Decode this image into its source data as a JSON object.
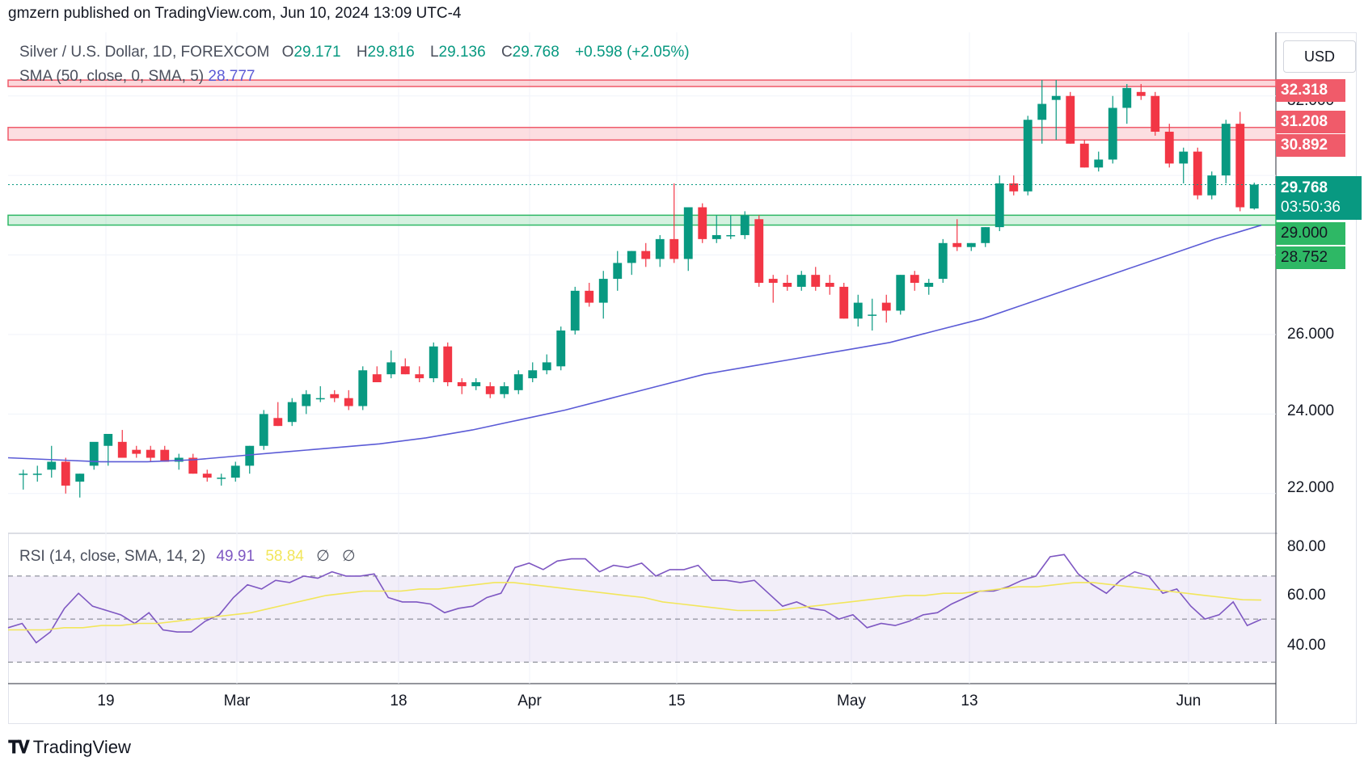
{
  "header": {
    "published_line": "gmzern published on TradingView.com, Jun 10, 2024 13:09 UTC-4"
  },
  "legend": {
    "symbol": "Silver / U.S. Dollar, 1D, FOREXCOM",
    "o_label": "O",
    "o_value": "29.171",
    "h_label": "H",
    "h_value": "29.816",
    "l_label": "L",
    "l_value": "29.136",
    "c_label": "C",
    "c_value": "29.768",
    "change": "+0.598 (+2.05%)",
    "sma_label": "SMA (50, close, 0, SMA, 5)",
    "sma_value": "28.777"
  },
  "rsi_legend": {
    "label": "RSI (14, close, SMA, 14, 2)",
    "rsi_value": "49.91",
    "rsi_ma_value": "58.84",
    "na1": "∅",
    "na2": "∅"
  },
  "currency": "USD",
  "price_tags": {
    "r1": "32.318",
    "r2": "31.208",
    "r3": "30.892",
    "current_price": "29.768",
    "countdown": "03:50:36",
    "s1": "29.000",
    "s2": "28.752"
  },
  "y_axis": [
    "32.000",
    "26.000",
    "24.000",
    "22.000"
  ],
  "rsi_axis": [
    "80.00",
    "60.00",
    "40.00"
  ],
  "x_axis": [
    "19",
    "Mar",
    "18",
    "Apr",
    "15",
    "May",
    "13",
    "Jun"
  ],
  "logo_text": "TradingView",
  "colors": {
    "up": "#089981",
    "down": "#f23645",
    "sma": "#5b5bd6",
    "rsi": "#7e57c2",
    "rsi_ma": "#f2e65b",
    "resistance": "#f05b6a",
    "support": "#2eb865"
  },
  "chart_data": {
    "type": "candlestick",
    "title": "Silver / U.S. Dollar, 1D, FOREXCOM",
    "ylim": [
      21.0,
      33.6
    ],
    "price_levels": {
      "resistance_upper": 32.318,
      "resistance_zone": [
        30.892,
        31.208
      ],
      "support_zone": [
        28.752,
        29.0
      ],
      "current": 29.768
    },
    "candles": [
      [
        22.5,
        22.6,
        22.1,
        22.5
      ],
      [
        22.5,
        22.7,
        22.3,
        22.5
      ],
      [
        22.6,
        23.2,
        22.4,
        22.8
      ],
      [
        22.8,
        22.9,
        22.0,
        22.2
      ],
      [
        22.3,
        22.5,
        21.9,
        22.5
      ],
      [
        22.7,
        23.2,
        22.6,
        23.3
      ],
      [
        23.2,
        23.5,
        22.7,
        23.5
      ],
      [
        23.3,
        23.6,
        22.9,
        22.9
      ],
      [
        23.1,
        23.2,
        22.9,
        23.0
      ],
      [
        23.1,
        23.2,
        22.8,
        22.9
      ],
      [
        23.1,
        23.2,
        22.8,
        22.8
      ],
      [
        22.8,
        23.0,
        22.6,
        22.9
      ],
      [
        22.9,
        23.0,
        22.5,
        22.5
      ],
      [
        22.5,
        22.6,
        22.3,
        22.4
      ],
      [
        22.4,
        22.5,
        22.2,
        22.4
      ],
      [
        22.4,
        22.8,
        22.3,
        22.7
      ],
      [
        22.7,
        23.2,
        22.5,
        23.2
      ],
      [
        23.2,
        24.1,
        23.1,
        24.0
      ],
      [
        23.9,
        24.3,
        23.7,
        23.7
      ],
      [
        23.8,
        24.4,
        23.7,
        24.3
      ],
      [
        24.2,
        24.6,
        24.0,
        24.5
      ],
      [
        24.4,
        24.7,
        24.3,
        24.4
      ],
      [
        24.5,
        24.6,
        24.3,
        24.4
      ],
      [
        24.4,
        24.6,
        24.1,
        24.2
      ],
      [
        24.2,
        25.2,
        24.1,
        25.1
      ],
      [
        25.0,
        25.2,
        24.8,
        24.8
      ],
      [
        25.0,
        25.6,
        24.9,
        25.3
      ],
      [
        25.2,
        25.4,
        25.0,
        25.0
      ],
      [
        25.0,
        25.2,
        24.8,
        24.9
      ],
      [
        24.9,
        25.8,
        24.8,
        25.7
      ],
      [
        25.7,
        25.8,
        24.7,
        24.8
      ],
      [
        24.8,
        24.9,
        24.5,
        24.7
      ],
      [
        24.7,
        24.9,
        24.6,
        24.8
      ],
      [
        24.7,
        24.8,
        24.4,
        24.5
      ],
      [
        24.5,
        24.8,
        24.4,
        24.7
      ],
      [
        24.6,
        25.1,
        24.5,
        25.0
      ],
      [
        24.9,
        25.3,
        24.8,
        25.1
      ],
      [
        25.1,
        25.5,
        25.0,
        25.3
      ],
      [
        25.2,
        26.2,
        25.1,
        26.1
      ],
      [
        26.1,
        27.2,
        26.0,
        27.1
      ],
      [
        27.1,
        27.3,
        26.7,
        26.8
      ],
      [
        26.8,
        27.6,
        26.4,
        27.4
      ],
      [
        27.4,
        28.1,
        27.1,
        27.8
      ],
      [
        27.8,
        28.1,
        27.5,
        28.1
      ],
      [
        28.1,
        28.3,
        27.7,
        27.9
      ],
      [
        27.9,
        28.5,
        27.7,
        28.4
      ],
      [
        28.4,
        29.8,
        27.8,
        27.9
      ],
      [
        27.9,
        29.2,
        27.6,
        29.2
      ],
      [
        29.2,
        29.3,
        28.3,
        28.4
      ],
      [
        28.4,
        29.0,
        28.3,
        28.5
      ],
      [
        28.5,
        29.0,
        28.4,
        28.5
      ],
      [
        28.5,
        29.1,
        28.4,
        29.0
      ],
      [
        28.9,
        29.0,
        27.2,
        27.3
      ],
      [
        27.4,
        27.5,
        26.8,
        27.3
      ],
      [
        27.3,
        27.5,
        27.1,
        27.2
      ],
      [
        27.2,
        27.6,
        27.1,
        27.5
      ],
      [
        27.5,
        27.7,
        27.1,
        27.2
      ],
      [
        27.3,
        27.5,
        27.0,
        27.2
      ],
      [
        27.2,
        27.3,
        26.4,
        26.4
      ],
      [
        26.4,
        27.0,
        26.2,
        26.8
      ],
      [
        26.5,
        26.9,
        26.1,
        26.5
      ],
      [
        26.8,
        27.0,
        26.3,
        26.6
      ],
      [
        26.6,
        27.5,
        26.5,
        27.5
      ],
      [
        27.5,
        27.6,
        27.1,
        27.3
      ],
      [
        27.2,
        27.4,
        27.0,
        27.3
      ],
      [
        27.4,
        28.4,
        27.3,
        28.3
      ],
      [
        28.3,
        28.9,
        28.1,
        28.2
      ],
      [
        28.2,
        28.3,
        28.1,
        28.3
      ],
      [
        28.3,
        28.7,
        28.2,
        28.7
      ],
      [
        28.7,
        30.0,
        28.6,
        29.8
      ],
      [
        29.8,
        30.0,
        29.5,
        29.6
      ],
      [
        29.6,
        31.5,
        29.5,
        31.4
      ],
      [
        31.4,
        32.4,
        30.8,
        31.8
      ],
      [
        31.9,
        32.4,
        30.9,
        32.0
      ],
      [
        32.0,
        32.1,
        30.8,
        30.8
      ],
      [
        30.8,
        30.9,
        30.2,
        30.2
      ],
      [
        30.2,
        30.6,
        30.1,
        30.4
      ],
      [
        30.4,
        32.0,
        30.3,
        31.7
      ],
      [
        31.7,
        32.3,
        31.3,
        32.2
      ],
      [
        32.1,
        32.3,
        31.9,
        32.0
      ],
      [
        32.0,
        32.1,
        31.0,
        31.1
      ],
      [
        31.1,
        31.3,
        30.2,
        30.3
      ],
      [
        30.3,
        30.7,
        29.8,
        30.6
      ],
      [
        30.6,
        30.7,
        29.4,
        29.5
      ],
      [
        29.5,
        30.1,
        29.4,
        30.0
      ],
      [
        30.0,
        31.4,
        29.8,
        31.3
      ],
      [
        31.3,
        31.6,
        29.1,
        29.2
      ],
      [
        29.17,
        29.82,
        29.14,
        29.77
      ]
    ],
    "sma_50": [
      22.9,
      22.85,
      22.8,
      22.8,
      22.85,
      22.95,
      23.05,
      23.15,
      23.25,
      23.4,
      23.6,
      23.85,
      24.1,
      24.4,
      24.7,
      25.0,
      25.2,
      25.4,
      25.6,
      25.8,
      26.1,
      26.4,
      26.8,
      27.2,
      27.6,
      28.0,
      28.4,
      28.75
    ],
    "rsi": [
      46,
      48,
      39,
      44,
      55,
      62,
      56,
      54,
      52,
      48,
      53,
      45,
      44,
      44,
      49,
      52,
      60,
      66,
      64,
      68,
      67,
      70,
      69,
      72,
      70,
      70,
      71,
      60,
      58,
      58,
      57,
      53,
      55,
      56,
      60,
      62,
      74,
      76,
      73,
      77,
      78,
      78,
      72,
      75,
      74,
      76,
      70,
      73,
      73,
      75,
      68,
      68,
      67,
      68,
      62,
      56,
      58,
      55,
      54,
      50,
      52,
      46,
      48,
      47,
      49,
      52,
      53,
      57,
      60,
      63,
      63,
      65,
      68,
      70,
      79,
      80,
      71,
      66,
      62,
      68,
      72,
      70,
      62,
      64,
      56,
      50,
      52,
      58,
      47,
      49.91
    ],
    "rsi_ma": [
      45,
      45,
      45,
      46,
      46,
      47,
      47,
      48,
      48,
      49,
      50,
      51,
      52,
      53,
      55,
      57,
      59,
      61,
      62,
      63,
      63,
      63,
      64,
      64,
      65,
      66,
      67,
      67,
      66,
      65,
      64,
      63,
      62,
      61,
      60,
      58,
      57,
      56,
      55,
      54,
      54,
      54,
      55,
      56,
      57,
      58,
      59,
      60,
      61,
      61,
      62,
      62,
      63,
      64,
      65,
      65,
      66,
      67,
      67,
      66,
      65,
      64,
      63,
      62,
      61,
      60,
      59,
      58.84
    ],
    "rsi_ylim": [
      20,
      88
    ],
    "rsi_levels": [
      70,
      50,
      30
    ],
    "x_tick_labels": [
      "19",
      "Mar",
      "18",
      "Apr",
      "15",
      "May",
      "13",
      "Jun"
    ]
  }
}
